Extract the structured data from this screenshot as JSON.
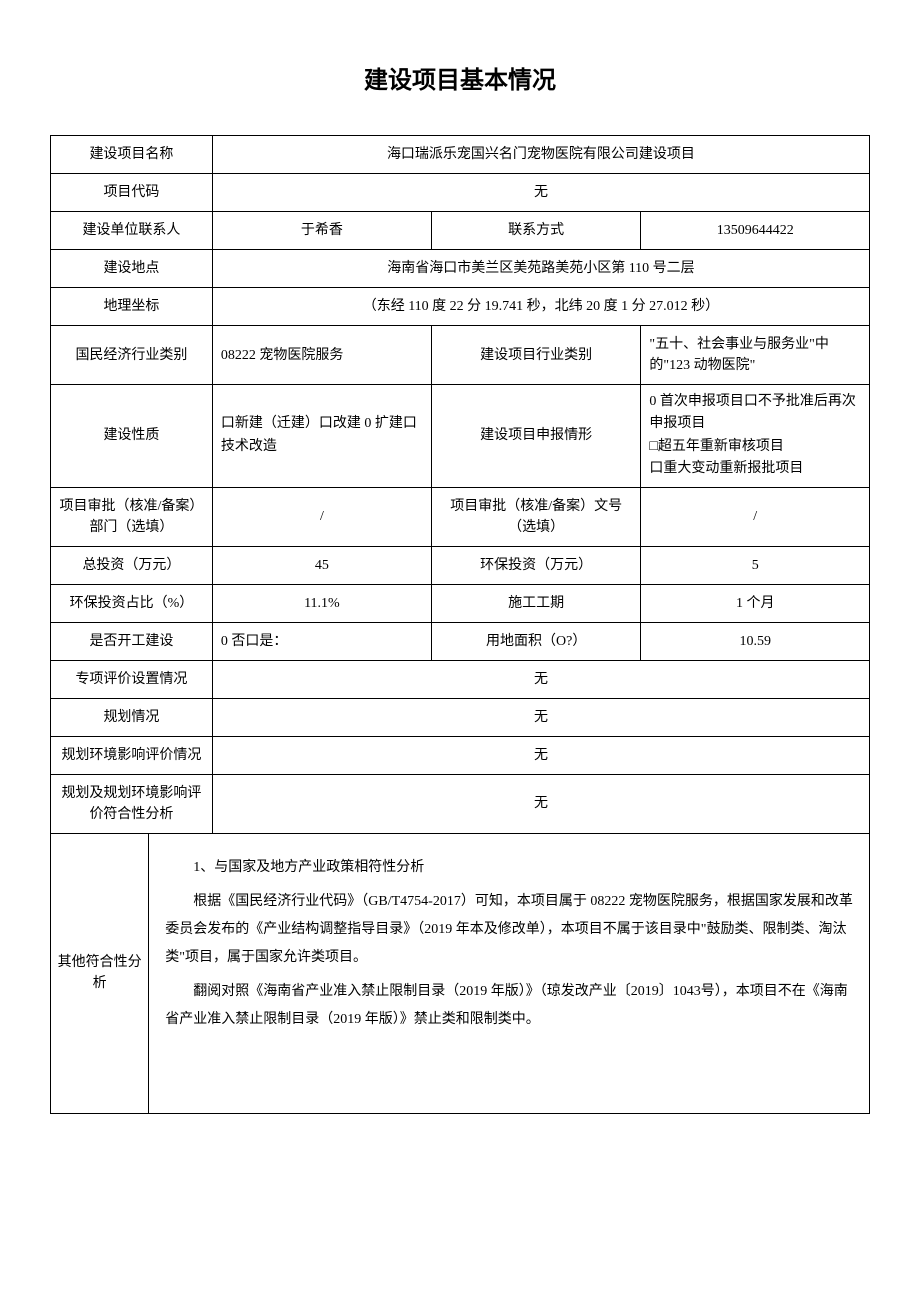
{
  "title": "建设项目基本情况",
  "rows": {
    "project_name_label": "建设项目名称",
    "project_name_value": "海口瑞派乐宠国兴名门宠物医院有限公司建设项目",
    "project_code_label": "项目代码",
    "project_code_value": "无",
    "contact_person_label": "建设单位联系人",
    "contact_person_value": "于希香",
    "contact_method_label": "联系方式",
    "contact_method_value": "13509644422",
    "location_label": "建设地点",
    "location_value": "海南省海口市美兰区美苑路美苑小区第 110 号二层",
    "coords_label": "地理坐标",
    "coords_value": "（东经 110 度 22 分 19.741 秒，北纬 20 度 1 分 27.012 秒）",
    "industry_class_label": "国民经济行业类别",
    "industry_class_value": "08222 宠物医院服务",
    "project_industry_label": "建设项目行业类别",
    "project_industry_value": "\"五十、社会事业与服务业\"中的\"123 动物医院\"",
    "nature_label": "建设性质",
    "nature_value": "口新建（迁建）口改建 0 扩建口技术改造",
    "declare_label": "建设项目申报情形",
    "declare_value": "0 首次申报项目口不予批准后再次申报项目\n□超五年重新审核项目\n口重大变动重新报批项目",
    "approval_dept_label": "项目审批（核准/备案）部门（选填）",
    "approval_dept_value": "/",
    "approval_no_label": "项目审批（核准/备案）文号（选填）",
    "approval_no_value": "/",
    "total_invest_label": "总投资（万元）",
    "total_invest_value": "45",
    "env_invest_label": "环保投资（万元）",
    "env_invest_value": "5",
    "env_ratio_label": "环保投资占比（%）",
    "env_ratio_value": "11.1%",
    "duration_label": "施工工期",
    "duration_value": "1 个月",
    "started_label": "是否开工建设",
    "started_value": "0 否口是：",
    "area_label": "用地面积（O?）",
    "area_value": "10.59",
    "special_eval_label": "专项评价设置情况",
    "special_eval_value": "无",
    "planning_label": "规划情况",
    "planning_value": "无",
    "planning_env_label": "规划环境影响评价情况",
    "planning_env_value": "无",
    "planning_comp_label": "规划及规划环境影响评价符合性分析",
    "planning_comp_value": "无",
    "other_comp_label": "其他符合性分析",
    "analysis_p1": "1、与国家及地方产业政策相符性分析",
    "analysis_p2": "根据《国民经济行业代码》（GB/T4754-2017）可知，本项目属于 08222 宠物医院服务，根据国家发展和改革委员会发布的《产业结构调整指导目录》（2019 年本及修改单），本项目不属于该目录中\"鼓励类、限制类、淘汰类\"项目，属于国家允许类项目。",
    "analysis_p3": "翻阅对照《海南省产业准入禁止限制目录（2019 年版）》（琼发改产业〔2019〕1043号），本项目不在《海南省产业准入禁止限制目录（2019 年版）》禁止类和限制类中。"
  },
  "colors": {
    "text": "#000000",
    "border": "#000000",
    "background": "#ffffff"
  },
  "fonts": {
    "title_family": "SimHei",
    "body_family": "SimSun",
    "title_size_pt": 18,
    "body_size_pt": 10.5
  }
}
